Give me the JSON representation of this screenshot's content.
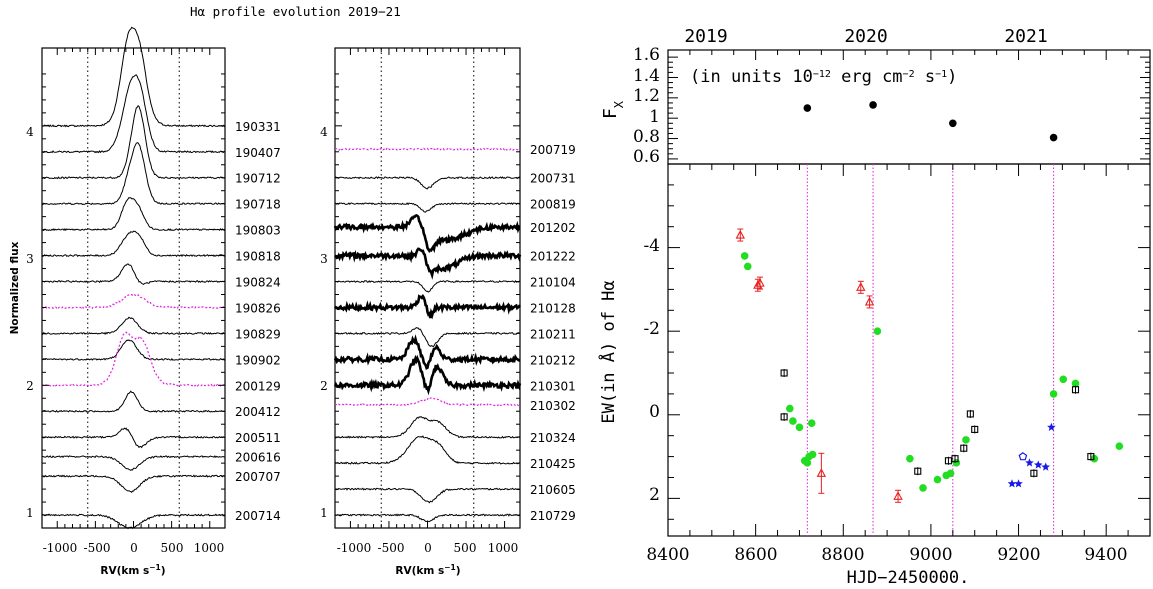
{
  "figure_title": "Hα profile evolution 2019−21",
  "colors": {
    "ink": "#000000",
    "magenta": "#e020e0",
    "green": "#22dd22",
    "red": "#e82020",
    "blue": "#1a1ae6"
  },
  "chart_data": [
    {
      "type": "line",
      "panel": "left-profiles",
      "ylabel": "Normalized flux",
      "xlabel_main": "RV(km s",
      "xlabel_sup": "−1",
      "xlabel_end": ")",
      "xlim": [
        -1200,
        1200
      ],
      "ylim": [
        0.9,
        4.6
      ],
      "x_ticks": [
        "-1000",
        "-500",
        "0",
        "500",
        "1000"
      ],
      "y_ticks": [
        "1",
        "2",
        "3",
        "4"
      ],
      "vlines": [
        -600,
        600
      ],
      "series": [
        {
          "name": "190331",
          "offset": 4.0,
          "style": "thin",
          "feats": [
            [
              -80,
              0.4,
              90
            ],
            [
              80,
              0.35,
              90
            ],
            [
              0,
              0.25,
              150
            ]
          ]
        },
        {
          "name": "190407",
          "offset": 3.8,
          "style": "thin",
          "feats": [
            [
              -40,
              0.45,
              110
            ],
            [
              100,
              0.3,
              90
            ]
          ]
        },
        {
          "name": "190712",
          "offset": 3.6,
          "style": "thin",
          "feats": [
            [
              60,
              0.55,
              90
            ]
          ]
        },
        {
          "name": "190718",
          "offset": 3.4,
          "style": "thin",
          "feats": [
            [
              60,
              0.45,
              90
            ],
            [
              -80,
              0.1,
              70
            ]
          ]
        },
        {
          "name": "190803",
          "offset": 3.2,
          "style": "thin",
          "feats": [
            [
              -80,
              0.2,
              80
            ],
            [
              60,
              0.15,
              80
            ]
          ]
        },
        {
          "name": "190818",
          "offset": 3.0,
          "style": "thin",
          "feats": [
            [
              -60,
              0.15,
              100
            ],
            [
              80,
              0.1,
              80
            ]
          ]
        },
        {
          "name": "190824",
          "offset": 2.8,
          "style": "thin",
          "feats": [
            [
              -60,
              0.15,
              90
            ],
            [
              60,
              -0.05,
              80
            ]
          ]
        },
        {
          "name": "190826",
          "offset": 2.6,
          "style": "magenta",
          "feats": [
            [
              0,
              0.1,
              150
            ]
          ]
        },
        {
          "name": "190829",
          "offset": 2.4,
          "style": "thin",
          "feats": [
            [
              -50,
              0.12,
              100
            ]
          ]
        },
        {
          "name": "190902",
          "offset": 2.2,
          "style": "thin",
          "feats": [
            [
              -60,
              0.15,
              100
            ]
          ]
        },
        {
          "name": "200129",
          "offset": 2.0,
          "style": "magenta",
          "feats": [
            [
              -120,
              0.3,
              100
            ],
            [
              120,
              0.25,
              100
            ],
            [
              0,
              0.1,
              200
            ]
          ]
        },
        {
          "name": "200412",
          "offset": 1.8,
          "style": "thin",
          "feats": [
            [
              -30,
              0.15,
              80
            ]
          ]
        },
        {
          "name": "200511",
          "offset": 1.6,
          "style": "thin",
          "feats": [
            [
              -80,
              0.1,
              90
            ],
            [
              50,
              -0.1,
              100
            ]
          ]
        },
        {
          "name": "200616",
          "offset": 1.45,
          "style": "thin",
          "feats": [
            [
              -40,
              -0.1,
              120
            ]
          ]
        },
        {
          "name": "200707",
          "offset": 1.3,
          "style": "thin",
          "feats": [
            [
              -40,
              -0.12,
              120
            ]
          ]
        },
        {
          "name": "200714",
          "offset": 1.0,
          "style": "thin",
          "feats": [
            [
              -50,
              -0.1,
              150
            ]
          ]
        }
      ]
    },
    {
      "type": "line",
      "panel": "middle-profiles",
      "xlabel_main": "RV(km s",
      "xlabel_sup": "−1",
      "xlabel_end": ")",
      "xlim": [
        -1200,
        1200
      ],
      "ylim": [
        0.9,
        4.6
      ],
      "x_ticks": [
        "-1000",
        "-500",
        "0",
        "500",
        "1000"
      ],
      "y_ticks": [
        "1",
        "2",
        "3",
        "4"
      ],
      "vlines": [
        -600,
        600
      ],
      "series": [
        {
          "name": "200719",
          "offset": 3.82,
          "style": "magenta",
          "feats": []
        },
        {
          "name": "200731",
          "offset": 3.6,
          "style": "thin",
          "feats": [
            [
              0,
              -0.08,
              80
            ]
          ]
        },
        {
          "name": "200819",
          "offset": 3.4,
          "style": "thin",
          "feats": [
            [
              -20,
              -0.06,
              70
            ]
          ]
        },
        {
          "name": "201202",
          "offset": 3.22,
          "style": "bold",
          "feats": [
            [
              -120,
              0.1,
              90
            ],
            [
              20,
              -0.15,
              60
            ],
            [
              250,
              -0.1,
              220
            ]
          ]
        },
        {
          "name": "201222",
          "offset": 3.0,
          "style": "bold",
          "feats": [
            [
              -60,
              0.1,
              60
            ],
            [
              20,
              -0.1,
              50
            ],
            [
              200,
              -0.1,
              180
            ]
          ]
        },
        {
          "name": "210104",
          "offset": 2.8,
          "style": "thin",
          "feats": [
            [
              0,
              -0.08,
              60
            ]
          ]
        },
        {
          "name": "210128",
          "offset": 2.6,
          "style": "bold",
          "feats": [
            [
              -60,
              0.1,
              60
            ],
            [
              20,
              -0.1,
              40
            ]
          ]
        },
        {
          "name": "210211",
          "offset": 2.4,
          "style": "thin",
          "feats": [
            [
              -120,
              0.05,
              70
            ],
            [
              50,
              -0.1,
              80
            ]
          ]
        },
        {
          "name": "210212",
          "offset": 2.2,
          "style": "bold",
          "feats": [
            [
              -180,
              0.15,
              70
            ],
            [
              100,
              0.1,
              60
            ],
            [
              0,
              -0.08,
              50
            ]
          ]
        },
        {
          "name": "210301",
          "offset": 2.0,
          "style": "bold",
          "feats": [
            [
              -150,
              0.2,
              80
            ],
            [
              120,
              0.15,
              70
            ],
            [
              0,
              -0.1,
              50
            ]
          ]
        },
        {
          "name": "210302",
          "offset": 1.85,
          "style": "magenta",
          "feats": [
            [
              50,
              0.05,
              120
            ]
          ]
        },
        {
          "name": "210324",
          "offset": 1.6,
          "style": "thin",
          "feats": [
            [
              -100,
              0.15,
              120
            ],
            [
              150,
              0.1,
              100
            ]
          ]
        },
        {
          "name": "210425",
          "offset": 1.4,
          "style": "thin",
          "feats": [
            [
              -100,
              0.2,
              150
            ],
            [
              150,
              0.1,
              100
            ]
          ]
        },
        {
          "name": "210605",
          "offset": 1.2,
          "style": "thin",
          "feats": [
            [
              20,
              -0.1,
              100
            ]
          ]
        },
        {
          "name": "210729",
          "offset": 1.0,
          "style": "thin",
          "feats": [
            [
              0,
              -0.05,
              80
            ]
          ]
        }
      ]
    },
    {
      "type": "scatter",
      "panel": "xray-flux",
      "label_main": "(in units 10",
      "label_sup1": "−12",
      "label_mid": " erg cm",
      "label_sup2": "−2",
      "label_mid2": " s",
      "label_sup3": "−1",
      "label_end": ")",
      "ylabel_main": "F",
      "ylabel_sub": "X",
      "year_labels": [
        {
          "text": "2019",
          "x": 8483
        },
        {
          "text": "2020",
          "x": 8848
        },
        {
          "text": "2021",
          "x": 9214
        }
      ],
      "y_ticks": [
        "0.6",
        "0.8",
        "1",
        "1.2",
        "1.4",
        "1.6"
      ],
      "xlim": [
        8400,
        9500
      ],
      "ylim": [
        0.55,
        1.67
      ],
      "points": [
        {
          "x": 8718,
          "y": 1.1
        },
        {
          "x": 8868,
          "y": 1.13
        },
        {
          "x": 9050,
          "y": 0.95
        },
        {
          "x": 9280,
          "y": 0.81
        }
      ]
    },
    {
      "type": "scatter",
      "panel": "equivalent-width",
      "ylabel": "EW(in Å) of Hα",
      "xlabel": "HJD−2450000.",
      "x_ticks": [
        "8400",
        "8600",
        "8800",
        "9000",
        "9200",
        "9400"
      ],
      "y_ticks": [
        "-4",
        "-2",
        "0",
        "2"
      ],
      "xlim": [
        8400,
        9500
      ],
      "ylim": [
        2.9,
        -6
      ],
      "vlines": [
        8718,
        8868,
        9050,
        9280
      ],
      "series": [
        {
          "marker": "triangle-red",
          "points": [
            [
              8565,
              -4.3
            ],
            [
              8605,
              -3.1
            ],
            [
              8610,
              -3.15
            ],
            [
              8750,
              1.4
            ],
            [
              8840,
              -3.05
            ],
            [
              8860,
              -2.7
            ],
            [
              8925,
              1.95
            ]
          ]
        },
        {
          "marker": "circle-green",
          "points": [
            [
              8575,
              -3.8
            ],
            [
              8582,
              -3.55
            ],
            [
              8678,
              -0.15
            ],
            [
              8685,
              0.15
            ],
            [
              8700,
              0.3
            ],
            [
              8712,
              1.1
            ],
            [
              8718,
              1.15
            ],
            [
              8722,
              1.0
            ],
            [
              8730,
              0.95
            ],
            [
              8728,
              0.2
            ],
            [
              8878,
              -2.0
            ],
            [
              8952,
              1.05
            ],
            [
              8982,
              1.75
            ],
            [
              9015,
              1.55
            ],
            [
              9035,
              1.45
            ],
            [
              9045,
              1.4
            ],
            [
              9058,
              1.15
            ],
            [
              9080,
              0.6
            ],
            [
              9280,
              -0.5
            ],
            [
              9302,
              -0.85
            ],
            [
              9330,
              -0.75
            ],
            [
              9373,
              1.05
            ],
            [
              9430,
              0.75
            ]
          ]
        },
        {
          "marker": "square-black",
          "points": [
            [
              8665,
              -1.0
            ],
            [
              8665,
              0.05
            ],
            [
              8970,
              1.35
            ],
            [
              9040,
              1.1
            ],
            [
              9055,
              1.05
            ],
            [
              9075,
              0.8
            ],
            [
              9090,
              -0.02
            ],
            [
              9100,
              0.35
            ],
            [
              9235,
              1.4
            ],
            [
              9330,
              -0.6
            ],
            [
              9365,
              1.0
            ]
          ]
        },
        {
          "marker": "star-blue",
          "points": [
            [
              9185,
              1.65
            ],
            [
              9200,
              1.65
            ],
            [
              9225,
              1.15
            ],
            [
              9245,
              1.2
            ],
            [
              9262,
              1.25
            ],
            [
              9275,
              0.3
            ]
          ]
        },
        {
          "marker": "pentagon-blue",
          "points": [
            [
              9210,
              1.0
            ]
          ]
        }
      ]
    }
  ]
}
